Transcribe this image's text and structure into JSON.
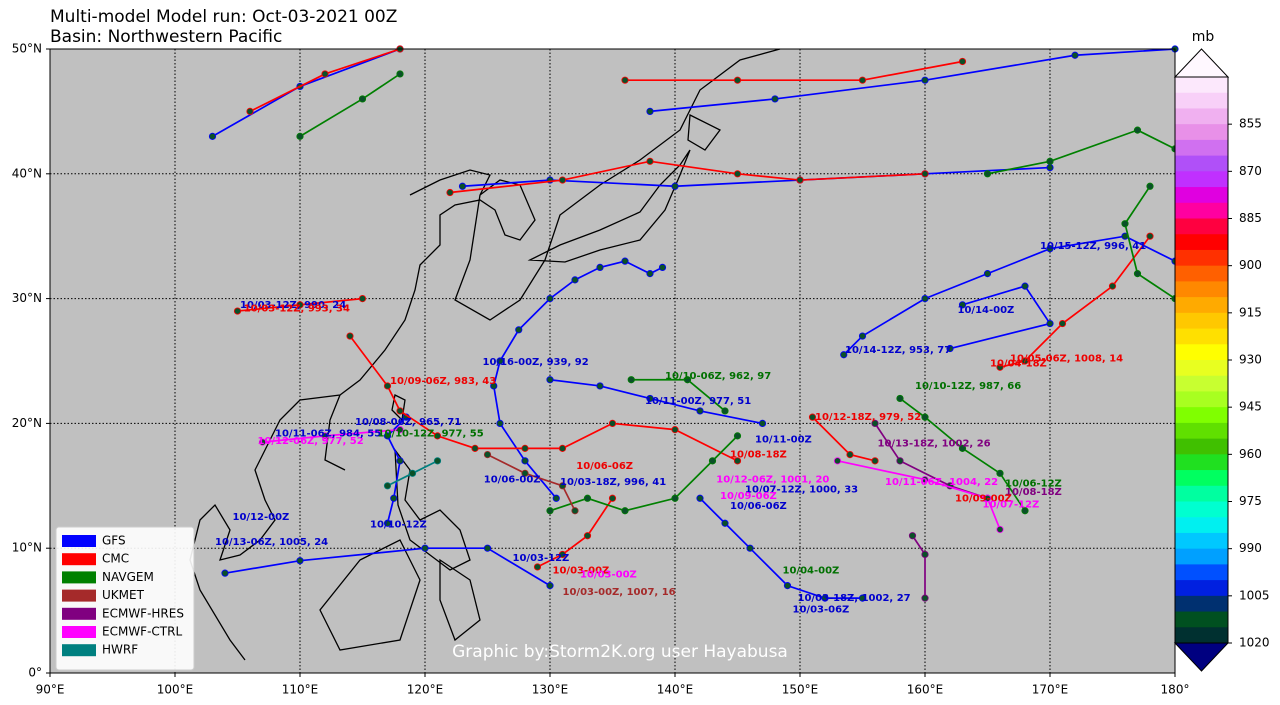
{
  "title": "Multi-model Model run: Oct-03-2021 00Z",
  "subtitle": "Basin: Northwestern Pacific",
  "map": {
    "xlim": [
      90,
      180
    ],
    "ylim": [
      0,
      50
    ],
    "xticks": [
      {
        "value": 90,
        "label": "90°E"
      },
      {
        "value": 100,
        "label": "100°E"
      },
      {
        "value": 110,
        "label": "110°E"
      },
      {
        "value": 120,
        "label": "120°E"
      },
      {
        "value": 130,
        "label": "130°E"
      },
      {
        "value": 140,
        "label": "140°E"
      },
      {
        "value": 150,
        "label": "150°E"
      },
      {
        "value": 160,
        "label": "160°E"
      },
      {
        "value": 170,
        "label": "170°E"
      },
      {
        "value": 180,
        "label": "180°"
      }
    ],
    "yticks": [
      {
        "value": 0,
        "label": "0°"
      },
      {
        "value": 10,
        "label": "10°N"
      },
      {
        "value": 20,
        "label": "20°N"
      },
      {
        "value": 30,
        "label": "30°N"
      },
      {
        "value": 40,
        "label": "40°N"
      },
      {
        "value": 50,
        "label": "50°N"
      }
    ],
    "grid": true,
    "land_color": "#c0c0c0"
  },
  "legend": [
    {
      "name": "GFS",
      "color": "#0000ff"
    },
    {
      "name": "CMC",
      "color": "#ff0000"
    },
    {
      "name": "NAVGEM",
      "color": "#008000"
    },
    {
      "name": "UKMET",
      "color": "#a52a2a"
    },
    {
      "name": "ECMWF-HRES",
      "color": "#800080"
    },
    {
      "name": "ECMWF-CTRL",
      "color": "#ff00ff"
    },
    {
      "name": "HWRF",
      "color": "#008080"
    }
  ],
  "colorbar": {
    "label": "mb",
    "clim": [
      840,
      1020
    ],
    "ticks": [
      855,
      870,
      885,
      900,
      915,
      930,
      945,
      960,
      975,
      990,
      1005,
      1020
    ],
    "colors": [
      "#fce8fc",
      "#f8d0f8",
      "#f0b0f0",
      "#e890e8",
      "#d070f0",
      "#b050f8",
      "#c030ff",
      "#e000e0",
      "#ff00a0",
      "#ff0040",
      "#ff0000",
      "#ff3000",
      "#ff6000",
      "#ff8800",
      "#ffaa00",
      "#ffc800",
      "#ffe000",
      "#ffff00",
      "#e8ff20",
      "#c8ff30",
      "#a8ff20",
      "#80ff00",
      "#60e000",
      "#40c000",
      "#20e020",
      "#00ff60",
      "#00ffa0",
      "#00ffd0",
      "#00f0f0",
      "#00c8ff",
      "#00a0ff",
      "#0050ff",
      "#0020e0",
      "#003070",
      "#005020",
      "#003030"
    ],
    "under_color": "#fff8ff",
    "over_color": "#000080"
  },
  "watermark": "Graphic by:Storm2K.org user Hayabusa",
  "tracks": [
    {
      "color": "#0000ff",
      "lon": [
        130.5,
        128,
        126,
        125.5,
        126,
        127.5,
        130,
        132,
        134,
        136,
        138,
        139
      ],
      "lat": [
        14,
        17,
        20,
        23,
        25,
        27.5,
        30,
        31.5,
        32.5,
        33,
        32,
        32.5
      ]
    },
    {
      "color": "#0000ff",
      "lon": [
        153.5,
        155,
        160,
        165,
        170,
        176,
        180
      ],
      "lat": [
        25.5,
        27,
        30,
        32,
        34,
        35,
        33
      ]
    },
    {
      "color": "#0000ff",
      "lon": [
        162,
        170,
        168,
        163
      ],
      "lat": [
        26,
        28,
        31,
        29.5
      ]
    },
    {
      "color": "#0000ff",
      "lon": [
        123,
        130,
        140,
        150,
        160,
        170
      ],
      "lat": [
        39,
        39.5,
        39,
        39.5,
        40,
        40.5
      ]
    },
    {
      "color": "#0000ff",
      "lon": [
        103,
        110,
        118
      ],
      "lat": [
        43,
        47,
        50
      ]
    },
    {
      "color": "#0000ff",
      "lon": [
        138,
        148,
        160,
        172,
        180
      ],
      "lat": [
        45,
        46,
        47.5,
        49.5,
        50
      ]
    },
    {
      "color": "#0000ff",
      "lon": [
        130,
        134,
        138,
        142,
        147
      ],
      "lat": [
        23.5,
        23,
        22,
        21,
        20
      ]
    },
    {
      "color": "#0000ff",
      "lon": [
        142,
        144,
        146,
        149,
        152,
        155
      ],
      "lat": [
        14,
        12,
        10,
        7,
        6,
        6
      ]
    },
    {
      "color": "#0000ff",
      "lon": [
        104,
        110,
        120,
        125,
        130
      ],
      "lat": [
        8,
        9,
        10,
        10,
        7
      ]
    },
    {
      "color": "#0000ff",
      "lon": [
        117,
        117.5,
        118,
        117,
        118.5
      ],
      "lat": [
        12,
        14,
        17,
        19,
        20.5
      ]
    },
    {
      "color": "#ff0000",
      "lon": [
        136,
        145,
        155,
        163
      ],
      "lat": [
        47.5,
        47.5,
        47.5,
        49
      ]
    },
    {
      "color": "#ff0000",
      "lon": [
        122,
        131,
        138,
        145,
        150,
        160
      ],
      "lat": [
        38.5,
        39.5,
        41,
        40,
        39.5,
        40
      ]
    },
    {
      "color": "#ff0000",
      "lon": [
        114,
        117,
        118,
        121,
        124,
        128,
        131,
        135,
        140,
        145
      ],
      "lat": [
        27,
        23,
        21,
        19,
        18,
        18,
        18,
        20,
        19.5,
        17
      ]
    },
    {
      "color": "#ff0000",
      "lon": [
        105,
        110,
        115
      ],
      "lat": [
        29,
        29.5,
        30
      ]
    },
    {
      "color": "#ff0000",
      "lon": [
        166,
        168,
        171,
        175,
        178
      ],
      "lat": [
        24.5,
        25,
        28,
        31,
        35
      ]
    },
    {
      "color": "#ff0000",
      "lon": [
        151,
        154,
        156
      ],
      "lat": [
        20.5,
        17.5,
        17
      ]
    },
    {
      "color": "#ff0000",
      "lon": [
        129,
        131,
        133,
        135
      ],
      "lat": [
        8.5,
        9.5,
        11,
        14
      ]
    },
    {
      "color": "#ff0000",
      "lon": [
        106,
        112,
        118
      ],
      "lat": [
        45,
        48,
        50
      ]
    },
    {
      "color": "#008000",
      "lon": [
        110,
        115,
        118
      ],
      "lat": [
        43,
        46,
        48
      ]
    },
    {
      "color": "#008000",
      "lon": [
        136.5,
        141,
        144
      ],
      "lat": [
        23.5,
        23.5,
        21
      ]
    },
    {
      "color": "#008000",
      "lon": [
        158,
        160,
        163,
        166,
        168
      ],
      "lat": [
        22,
        20.5,
        18,
        16,
        13
      ]
    },
    {
      "color": "#008000",
      "lon": [
        165,
        170,
        177,
        180
      ],
      "lat": [
        40,
        41,
        43.5,
        42
      ]
    },
    {
      "color": "#008000",
      "lon": [
        178,
        176,
        177,
        180
      ],
      "lat": [
        39,
        36,
        32,
        30
      ]
    },
    {
      "color": "#008000",
      "lon": [
        130,
        133,
        136,
        140,
        143,
        145
      ],
      "lat": [
        13,
        14,
        13,
        14,
        17,
        19
      ]
    },
    {
      "color": "#a52a2a",
      "lon": [
        132,
        131,
        128,
        125
      ],
      "lat": [
        13,
        15,
        16,
        17.5
      ]
    },
    {
      "color": "#800080",
      "lon": [
        156,
        158,
        162,
        165
      ],
      "lat": [
        20,
        17,
        15,
        14
      ]
    },
    {
      "color": "#800080",
      "lon": [
        159,
        160,
        160
      ],
      "lat": [
        11,
        9.5,
        6
      ]
    },
    {
      "color": "#ff00ff",
      "lon": [
        153,
        160,
        165,
        166
      ],
      "lat": [
        17,
        15.5,
        14,
        11.5
      ]
    },
    {
      "color": "#ff00ff",
      "lon": [
        107,
        112,
        118
      ],
      "lat": [
        18.5,
        19,
        19.5
      ]
    },
    {
      "color": "#008080",
      "lon": [
        117,
        119,
        121
      ],
      "lat": [
        15,
        16,
        17
      ]
    }
  ],
  "labels": [
    {
      "text": "10/16-00Z, 939, 92",
      "lon": 124.6,
      "lat": 24.9,
      "color": "#0000cc"
    },
    {
      "text": "10/09-06Z, 983, 43",
      "lon": 117.2,
      "lat": 23.4,
      "color": "#ee0000"
    },
    {
      "text": "10/11-00Z, 977, 51",
      "lon": 137.6,
      "lat": 21.8,
      "color": "#0000cc"
    },
    {
      "text": "10/10-06Z, 962, 97",
      "lon": 139.2,
      "lat": 23.8,
      "color": "#007000"
    },
    {
      "text": "10/15-12Z, 996, 41",
      "lon": 169.2,
      "lat": 34.2,
      "color": "#0000cc"
    },
    {
      "text": "10/14-00Z",
      "lon": 162.6,
      "lat": 29.1,
      "color": "#0000cc"
    },
    {
      "text": "10/14-12Z, 953, 77",
      "lon": 153.6,
      "lat": 25.9,
      "color": "#0000cc"
    },
    {
      "text": "10/05-06Z, 1008, 14",
      "lon": 166.8,
      "lat": 25.2,
      "color": "#ee0000"
    },
    {
      "text": "10/04-18Z",
      "lon": 165.2,
      "lat": 24.8,
      "color": "#ee0000"
    },
    {
      "text": "10/10-12Z, 987, 66",
      "lon": 159.2,
      "lat": 23.0,
      "color": "#007000"
    },
    {
      "text": "10/12-18Z, 979, 52",
      "lon": 151.2,
      "lat": 20.5,
      "color": "#ee0000"
    },
    {
      "text": "10/13-18Z, 1002, 26",
      "lon": 156.2,
      "lat": 18.4,
      "color": "#800080"
    },
    {
      "text": "10/11-00Z",
      "lon": 146.4,
      "lat": 18.7,
      "color": "#0000cc"
    },
    {
      "text": "10/08-18Z",
      "lon": 144.4,
      "lat": 17.5,
      "color": "#ee0000"
    },
    {
      "text": "10/12-06Z, 1001, 20",
      "lon": 143.3,
      "lat": 15.5,
      "color": "#ff00ff"
    },
    {
      "text": "10/07-12Z, 1000, 33",
      "lon": 145.6,
      "lat": 14.7,
      "color": "#0000cc"
    },
    {
      "text": "10/09-06Z",
      "lon": 143.6,
      "lat": 14.2,
      "color": "#ff00ff"
    },
    {
      "text": "10/06-06Z",
      "lon": 144.4,
      "lat": 13.4,
      "color": "#0000cc"
    },
    {
      "text": "10/11-06Z, 1004, 22",
      "lon": 156.8,
      "lat": 15.3,
      "color": "#ff00ff"
    },
    {
      "text": "10/06-12Z",
      "lon": 166.4,
      "lat": 15.2,
      "color": "#007000"
    },
    {
      "text": "10/08-18Z",
      "lon": 166.4,
      "lat": 14.5,
      "color": "#800080"
    },
    {
      "text": "10/09-00Z",
      "lon": 162.4,
      "lat": 14.0,
      "color": "#ee0000"
    },
    {
      "text": "10/07-12Z",
      "lon": 164.6,
      "lat": 13.5,
      "color": "#ff00ff"
    },
    {
      "text": "10/04-00Z",
      "lon": 148.6,
      "lat": 8.2,
      "color": "#007000"
    },
    {
      "text": "10/03-18Z, 1002, 27",
      "lon": 149.8,
      "lat": 6.0,
      "color": "#0000cc"
    },
    {
      "text": "10/03-06Z",
      "lon": 149.4,
      "lat": 5.1,
      "color": "#0000cc"
    },
    {
      "text": "10/03-12Z",
      "lon": 127.0,
      "lat": 9.2,
      "color": "#0000cc"
    },
    {
      "text": "10/03-00Z",
      "lon": 130.2,
      "lat": 8.2,
      "color": "#ee0000"
    },
    {
      "text": "10/03-00Z",
      "lon": 132.4,
      "lat": 7.9,
      "color": "#ff00ff"
    },
    {
      "text": "10/03-00Z, 1007, 16",
      "lon": 131.0,
      "lat": 6.5,
      "color": "#a52a2a"
    },
    {
      "text": "10/12-00Z",
      "lon": 104.6,
      "lat": 12.5,
      "color": "#0000cc"
    },
    {
      "text": "10/13-06Z, 1005, 24",
      "lon": 103.2,
      "lat": 10.5,
      "color": "#0000cc"
    },
    {
      "text": "10/03-12Z, 990, 24",
      "lon": 105.2,
      "lat": 29.5,
      "color": "#0000cc"
    },
    {
      "text": "10/03-12Z, 993, 34",
      "lon": 105.5,
      "lat": 29.2,
      "color": "#ee0000"
    },
    {
      "text": "10/12-06Z, 977, 52",
      "lon": 106.6,
      "lat": 18.6,
      "color": "#ff00ff"
    },
    {
      "text": "10/11-06Z, 984, 55",
      "lon": 108.0,
      "lat": 19.2,
      "color": "#0000cc"
    },
    {
      "text": "10/08-06Z, 965, 71",
      "lon": 114.4,
      "lat": 20.1,
      "color": "#0000cc"
    },
    {
      "text": "10/10-12Z, 977, 55",
      "lon": 116.2,
      "lat": 19.2,
      "color": "#007000"
    },
    {
      "text": "10/06-06Z",
      "lon": 132.1,
      "lat": 16.6,
      "color": "#ee0000"
    },
    {
      "text": "10/03-18Z, 996, 41",
      "lon": 130.8,
      "lat": 15.3,
      "color": "#0000cc"
    },
    {
      "text": "10/06-00Z",
      "lon": 124.7,
      "lat": 15.5,
      "color": "#0000cc"
    },
    {
      "text": "10/10-12Z",
      "lon": 115.6,
      "lat": 11.9,
      "color": "#0000cc"
    }
  ]
}
